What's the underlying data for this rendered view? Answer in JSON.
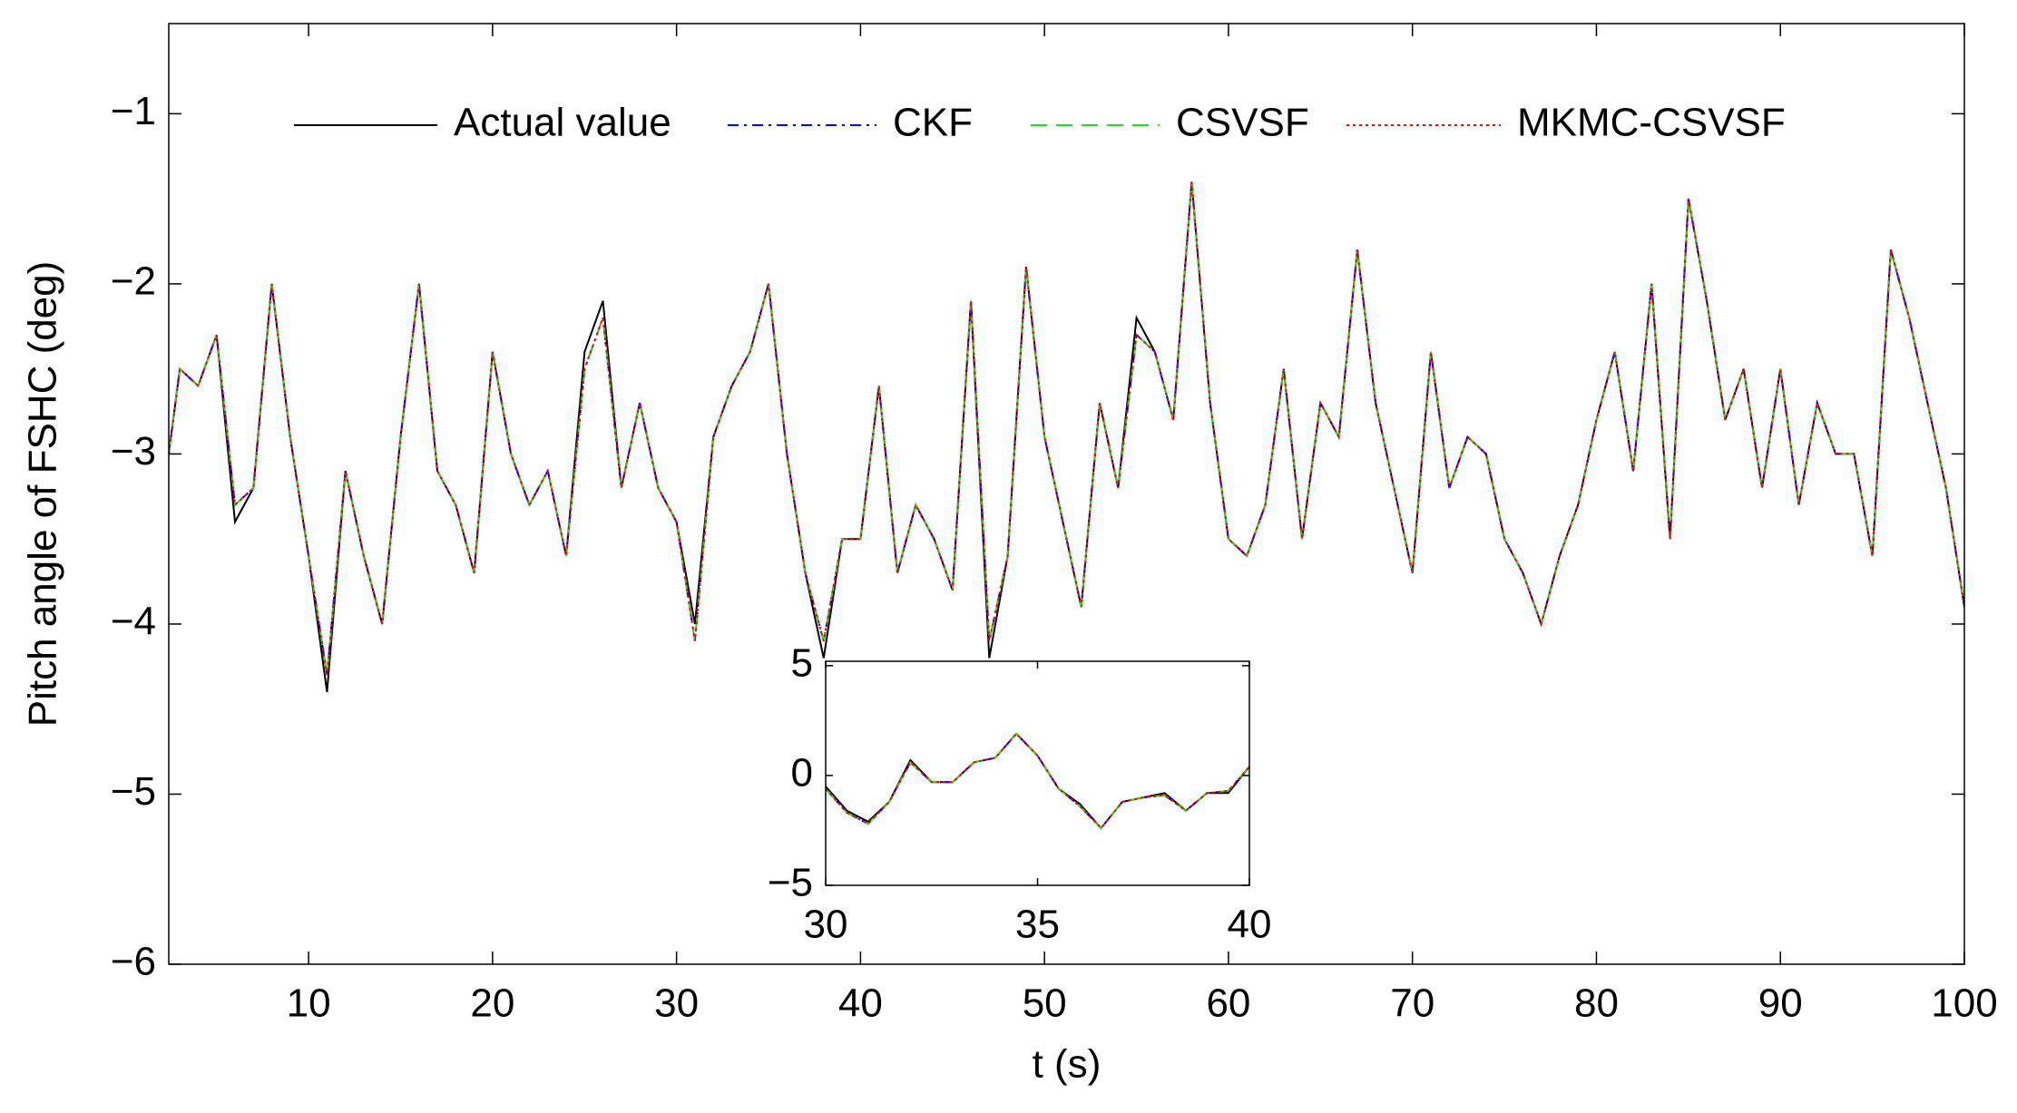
{
  "chart_data": [
    {
      "type": "line",
      "xlabel": "t (s)",
      "ylabel": "Pitch angle of FSHC (deg)",
      "xlim": [
        2.4,
        100
      ],
      "ylim": [
        -6,
        -0.47
      ],
      "xticks": [
        10,
        20,
        30,
        40,
        50,
        60,
        70,
        80,
        90,
        100
      ],
      "yticks": [
        {
          "value": -6,
          "label": "−6"
        },
        {
          "value": -5,
          "label": "−5"
        },
        {
          "value": -4,
          "label": "−4"
        },
        {
          "value": -3,
          "label": "−3"
        },
        {
          "value": -2,
          "label": "−2"
        },
        {
          "value": -1,
          "label": "−1"
        }
      ],
      "legend": "top",
      "grid": false,
      "x": [
        2.4,
        3,
        4,
        5,
        6,
        7,
        8,
        9,
        10,
        11,
        12,
        13,
        14,
        15,
        16,
        17,
        18,
        19,
        20,
        21,
        22,
        23,
        24,
        25,
        26,
        27,
        28,
        29,
        30,
        31,
        32,
        33,
        34,
        35,
        36,
        37,
        38,
        39,
        40,
        41,
        42,
        43,
        44,
        45,
        46,
        47,
        48,
        49,
        50,
        51,
        52,
        53,
        54,
        55,
        56,
        57,
        58,
        59,
        60,
        61,
        62,
        63,
        64,
        65,
        66,
        67,
        68,
        69,
        70,
        71,
        72,
        73,
        74,
        75,
        76,
        77,
        78,
        79,
        80,
        81,
        82,
        83,
        84,
        85,
        86,
        87,
        88,
        89,
        90,
        91,
        92,
        93,
        94,
        95,
        96,
        97,
        98,
        99,
        100
      ],
      "series": [
        {
          "name": "Actual value",
          "color": "#000000",
          "dash": "solid",
          "values": [
            -3.0,
            -2.5,
            -2.6,
            -2.3,
            -3.4,
            -3.2,
            -2.0,
            -2.9,
            -3.6,
            -4.4,
            -3.1,
            -3.6,
            -4.0,
            -2.9,
            -2.0,
            -3.1,
            -3.3,
            -3.7,
            -2.4,
            -3.0,
            -3.3,
            -3.1,
            -3.6,
            -2.4,
            -2.1,
            -3.2,
            -2.7,
            -3.2,
            -3.4,
            -4.0,
            -2.9,
            -2.6,
            -2.4,
            -2.0,
            -3.0,
            -3.7,
            -4.2,
            -3.5,
            -3.5,
            -2.6,
            -3.7,
            -3.3,
            -3.5,
            -3.8,
            -2.1,
            -4.2,
            -3.6,
            -1.9,
            -2.9,
            -3.4,
            -3.9,
            -2.7,
            -3.2,
            -2.2,
            -2.4,
            -2.8,
            -1.4,
            -2.7,
            -3.5,
            -3.6,
            -3.3,
            -2.5,
            -3.5,
            -2.7,
            -2.9,
            -1.8,
            -2.7,
            -3.2,
            -3.7,
            -2.4,
            -3.2,
            -2.9,
            -3.0,
            -3.5,
            -3.7,
            -4.0,
            -3.6,
            -3.3,
            -2.8,
            -2.4,
            -3.1,
            -2.0,
            -3.5,
            -1.5,
            -2.1,
            -2.8,
            -2.5,
            -3.2,
            -2.5,
            -3.3,
            -2.7,
            -3.0,
            -3.0,
            -3.6,
            -1.8,
            -2.2,
            -2.7,
            -3.2,
            -3.9
          ]
        },
        {
          "name": "CKF",
          "color": "#0000ff",
          "dash": "dashdot",
          "values": [
            -3.0,
            -2.5,
            -2.6,
            -2.3,
            -3.3,
            -3.2,
            -2.0,
            -2.9,
            -3.6,
            -4.3,
            -3.1,
            -3.6,
            -4.0,
            -2.9,
            -2.0,
            -3.1,
            -3.3,
            -3.7,
            -2.4,
            -3.0,
            -3.3,
            -3.1,
            -3.6,
            -2.5,
            -2.2,
            -3.2,
            -2.7,
            -3.2,
            -3.4,
            -4.1,
            -2.9,
            -2.6,
            -2.4,
            -2.0,
            -3.0,
            -3.7,
            -4.1,
            -3.5,
            -3.5,
            -2.6,
            -3.7,
            -3.3,
            -3.5,
            -3.8,
            -2.1,
            -4.1,
            -3.6,
            -1.9,
            -2.9,
            -3.4,
            -3.9,
            -2.7,
            -3.2,
            -2.3,
            -2.4,
            -2.8,
            -1.4,
            -2.7,
            -3.5,
            -3.6,
            -3.3,
            -2.5,
            -3.5,
            -2.7,
            -2.9,
            -1.8,
            -2.7,
            -3.2,
            -3.7,
            -2.4,
            -3.2,
            -2.9,
            -3.0,
            -3.5,
            -3.7,
            -4.0,
            -3.6,
            -3.3,
            -2.8,
            -2.4,
            -3.1,
            -2.0,
            -3.5,
            -1.5,
            -2.1,
            -2.8,
            -2.5,
            -3.2,
            -2.5,
            -3.3,
            -2.7,
            -3.0,
            -3.0,
            -3.6,
            -1.8,
            -2.2,
            -2.7,
            -3.2,
            -3.9
          ]
        },
        {
          "name": "CSVSF",
          "color": "#22dd22",
          "dash": "dashed",
          "values": [
            -3.0,
            -2.5,
            -2.6,
            -2.3,
            -3.3,
            -3.2,
            -2.0,
            -2.9,
            -3.6,
            -4.3,
            -3.1,
            -3.6,
            -4.0,
            -2.9,
            -2.0,
            -3.1,
            -3.3,
            -3.7,
            -2.4,
            -3.0,
            -3.3,
            -3.1,
            -3.6,
            -2.5,
            -2.2,
            -3.2,
            -2.7,
            -3.2,
            -3.4,
            -4.1,
            -2.9,
            -2.6,
            -2.4,
            -2.0,
            -3.0,
            -3.7,
            -4.1,
            -3.5,
            -3.5,
            -2.6,
            -3.7,
            -3.3,
            -3.5,
            -3.8,
            -2.1,
            -4.1,
            -3.6,
            -1.9,
            -2.9,
            -3.4,
            -3.9,
            -2.7,
            -3.2,
            -2.3,
            -2.4,
            -2.8,
            -1.4,
            -2.7,
            -3.5,
            -3.6,
            -3.3,
            -2.5,
            -3.5,
            -2.7,
            -2.9,
            -1.8,
            -2.7,
            -3.2,
            -3.7,
            -2.4,
            -3.2,
            -2.9,
            -3.0,
            -3.5,
            -3.7,
            -4.0,
            -3.6,
            -3.3,
            -2.8,
            -2.4,
            -3.1,
            -2.0,
            -3.5,
            -1.5,
            -2.1,
            -2.8,
            -2.5,
            -3.2,
            -2.5,
            -3.3,
            -2.7,
            -3.0,
            -3.0,
            -3.6,
            -1.8,
            -2.2,
            -2.7,
            -3.2,
            -3.9
          ]
        },
        {
          "name": "MKMC-CSVSF",
          "color": "#ff0000",
          "dash": "dotted",
          "values": [
            -3.0,
            -2.5,
            -2.6,
            -2.3,
            -3.3,
            -3.2,
            -2.0,
            -2.9,
            -3.6,
            -4.3,
            -3.1,
            -3.6,
            -4.0,
            -2.9,
            -2.0,
            -3.1,
            -3.3,
            -3.7,
            -2.4,
            -3.0,
            -3.3,
            -3.1,
            -3.6,
            -2.5,
            -2.2,
            -3.2,
            -2.7,
            -3.2,
            -3.4,
            -4.1,
            -2.9,
            -2.6,
            -2.4,
            -2.0,
            -3.0,
            -3.7,
            -4.1,
            -3.5,
            -3.5,
            -2.6,
            -3.7,
            -3.3,
            -3.5,
            -3.8,
            -2.1,
            -4.1,
            -3.6,
            -1.9,
            -2.9,
            -3.4,
            -3.9,
            -2.7,
            -3.2,
            -2.3,
            -2.4,
            -2.8,
            -1.4,
            -2.7,
            -3.5,
            -3.6,
            -3.3,
            -2.5,
            -3.5,
            -2.7,
            -2.9,
            -1.8,
            -2.7,
            -3.2,
            -3.7,
            -2.4,
            -3.2,
            -2.9,
            -3.0,
            -3.5,
            -3.7,
            -4.0,
            -3.6,
            -3.3,
            -2.8,
            -2.4,
            -3.1,
            -2.0,
            -3.5,
            -1.5,
            -2.1,
            -2.8,
            -2.5,
            -3.2,
            -2.5,
            -3.3,
            -2.7,
            -3.0,
            -3.0,
            -3.6,
            -1.8,
            -2.2,
            -2.7,
            -3.2,
            -3.9
          ]
        }
      ]
    },
    {
      "type": "line",
      "xlim": [
        30,
        40
      ],
      "ylim": [
        -5,
        5.2
      ],
      "xticks": [
        30,
        35,
        40
      ],
      "yticks": [
        {
          "value": -5,
          "label": "−5"
        },
        0,
        5
      ],
      "x": [
        30,
        30.5,
        31,
        31.5,
        32,
        32.5,
        33,
        33.5,
        34,
        34.5,
        35,
        35.5,
        36,
        36.5,
        37,
        37.5,
        38,
        38.5,
        39,
        39.5,
        40
      ],
      "series": [
        {
          "color": "#000000",
          "dash": "solid",
          "values": [
            -0.5,
            -1.6,
            -2.1,
            -1.2,
            0.7,
            -0.3,
            -0.3,
            0.6,
            0.8,
            1.9,
            0.9,
            -0.6,
            -1.3,
            -2.4,
            -1.2,
            -1.0,
            -0.8,
            -1.6,
            -0.8,
            -0.8,
            0.4
          ]
        },
        {
          "color": "#0000ff",
          "dash": "dashdot",
          "values": [
            -0.6,
            -1.7,
            -2.2,
            -1.2,
            0.6,
            -0.3,
            -0.3,
            0.6,
            0.8,
            1.9,
            0.9,
            -0.6,
            -1.4,
            -2.4,
            -1.2,
            -1.0,
            -0.9,
            -1.6,
            -0.8,
            -0.7,
            0.4
          ]
        },
        {
          "color": "#22dd22",
          "dash": "dashed",
          "values": [
            -0.6,
            -1.7,
            -2.2,
            -1.2,
            0.6,
            -0.3,
            -0.3,
            0.6,
            0.8,
            1.9,
            0.9,
            -0.6,
            -1.4,
            -2.4,
            -1.2,
            -1.0,
            -0.9,
            -1.6,
            -0.8,
            -0.7,
            0.4
          ]
        },
        {
          "color": "#ff0000",
          "dash": "dotted",
          "values": [
            -0.6,
            -1.7,
            -2.2,
            -1.2,
            0.6,
            -0.3,
            -0.3,
            0.6,
            0.8,
            1.9,
            0.9,
            -0.6,
            -1.4,
            -2.4,
            -1.2,
            -1.0,
            -0.9,
            -1.6,
            -0.8,
            -0.7,
            0.4
          ]
        }
      ]
    }
  ]
}
